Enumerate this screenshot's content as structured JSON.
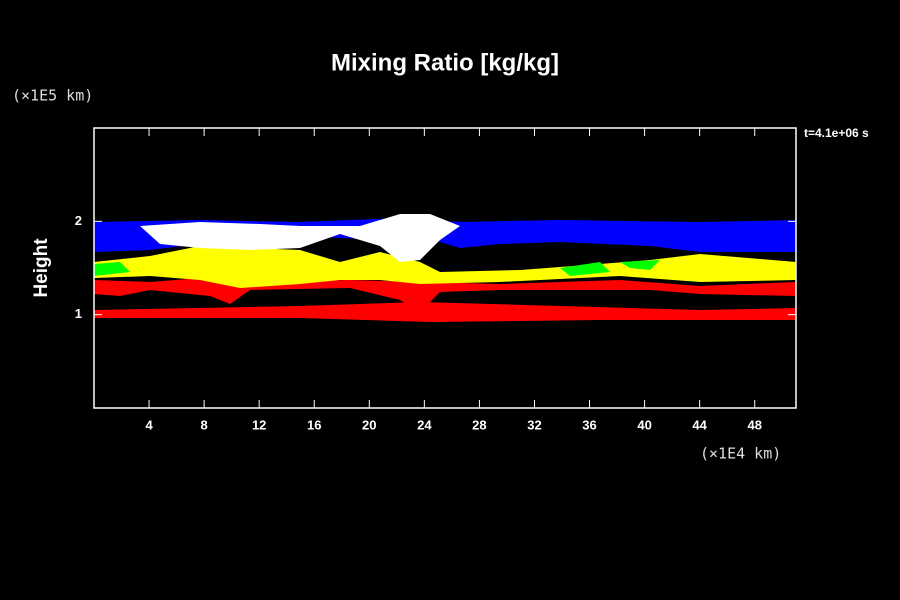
{
  "chart_data": {
    "type": "field",
    "title": "Mixing Ratio [kg/kg]",
    "y_label": "Height",
    "y_unit_label": "(×1E5 km)",
    "x_unit_label": "(×1E4 km)",
    "annotation": "t=4.1e+06 s",
    "xlim": [
      0,
      51
    ],
    "ylim": [
      0,
      3
    ],
    "xticks": [
      4,
      8,
      12,
      16,
      20,
      24,
      28,
      32,
      36,
      40,
      44,
      48
    ],
    "yticks": [
      1,
      2
    ]
  }
}
